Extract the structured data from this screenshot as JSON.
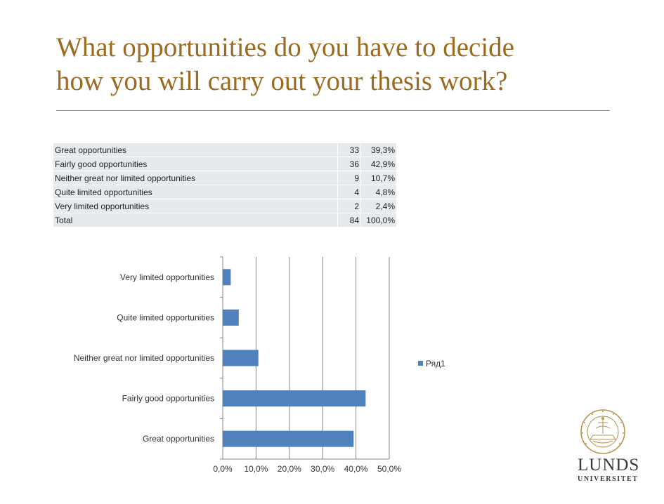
{
  "slide": {
    "title_line1": "What opportunities do you have to decide",
    "title_line2": "how you will carry out your thesis work?"
  },
  "table": {
    "rows": [
      {
        "label": "Great opportunities",
        "count": "33",
        "percent": "39,3%"
      },
      {
        "label": "Fairly good opportunities",
        "count": "36",
        "percent": "42,9%"
      },
      {
        "label": "Neither great nor limited opportunities",
        "count": "9",
        "percent": "10,7%"
      },
      {
        "label": "Quite limited opportunities",
        "count": "4",
        "percent": "4,8%"
      },
      {
        "label": "Very limited opportunities",
        "count": "2",
        "percent": "2,4%"
      },
      {
        "label": "Total",
        "count": "84",
        "percent": "100,0%"
      }
    ]
  },
  "chart_data": {
    "type": "bar",
    "orientation": "horizontal",
    "categories": [
      "Great opportunities",
      "Fairly good opportunities",
      "Neither great nor limited opportunities",
      "Quite limited opportunities",
      "Very limited opportunities"
    ],
    "series": [
      {
        "name": "Ряд1",
        "values": [
          39.3,
          42.9,
          10.7,
          4.8,
          2.4
        ]
      }
    ],
    "xlim": [
      0,
      50
    ],
    "xticks": [
      "0,0%",
      "10,0%",
      "20,0%",
      "30,0%",
      "40,0%",
      "50,0%"
    ],
    "title": "",
    "xlabel": "",
    "ylabel": "",
    "grid": "vertical",
    "legend": "right",
    "bar_color": "#4f81bd"
  },
  "logo": {
    "name_big": "LUNDS",
    "name_small": "UNIVERSITET",
    "seal_text": "CAROLINA · SIGILLUM · UNIVERSITATIS",
    "seal_year": "1666"
  }
}
